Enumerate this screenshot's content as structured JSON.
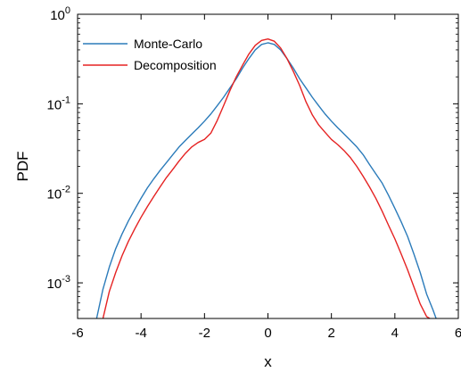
{
  "chart_data": {
    "type": "line",
    "title": "",
    "xlabel": "x",
    "ylabel": "PDF",
    "xlim": [
      -6,
      6
    ],
    "ylim": [
      0.0004,
      1
    ],
    "yscale": "log",
    "grid": false,
    "legend_position": "top-left",
    "x_ticks": [
      {
        "value": -6,
        "label": "-6"
      },
      {
        "value": -4,
        "label": "-4"
      },
      {
        "value": -2,
        "label": "-2"
      },
      {
        "value": 0,
        "label": "0"
      },
      {
        "value": 2,
        "label": "2"
      },
      {
        "value": 4,
        "label": "4"
      },
      {
        "value": 6,
        "label": "6"
      }
    ],
    "y_ticks": [
      {
        "value": 0.001,
        "base": "10",
        "exp": "-3"
      },
      {
        "value": 0.01,
        "base": "10",
        "exp": "-2"
      },
      {
        "value": 0.1,
        "base": "10",
        "exp": "-1"
      },
      {
        "value": 1,
        "base": "10",
        "exp": "0"
      }
    ],
    "series": [
      {
        "name": "Monte-Carlo",
        "color": "#2b7bba",
        "x": [
          -5.4,
          -5.2,
          -5.0,
          -4.8,
          -4.6,
          -4.4,
          -4.2,
          -4.0,
          -3.8,
          -3.6,
          -3.4,
          -3.2,
          -3.0,
          -2.8,
          -2.6,
          -2.4,
          -2.2,
          -2.0,
          -1.8,
          -1.6,
          -1.4,
          -1.2,
          -1.0,
          -0.8,
          -0.6,
          -0.4,
          -0.2,
          0.0,
          0.2,
          0.4,
          0.6,
          0.8,
          1.0,
          1.2,
          1.4,
          1.6,
          1.8,
          2.0,
          2.2,
          2.4,
          2.6,
          2.8,
          3.0,
          3.2,
          3.4,
          3.6,
          3.8,
          4.0,
          4.2,
          4.4,
          4.6,
          4.8,
          5.0,
          5.2,
          5.3
        ],
        "y": [
          0.0004,
          0.00085,
          0.0015,
          0.0024,
          0.0035,
          0.0049,
          0.0066,
          0.0088,
          0.0115,
          0.0145,
          0.018,
          0.022,
          0.027,
          0.033,
          0.039,
          0.046,
          0.054,
          0.064,
          0.077,
          0.095,
          0.118,
          0.15,
          0.19,
          0.25,
          0.32,
          0.4,
          0.46,
          0.48,
          0.46,
          0.4,
          0.32,
          0.25,
          0.19,
          0.15,
          0.118,
          0.095,
          0.077,
          0.064,
          0.054,
          0.046,
          0.039,
          0.033,
          0.027,
          0.021,
          0.0165,
          0.013,
          0.0095,
          0.0068,
          0.0048,
          0.0033,
          0.0021,
          0.0013,
          0.00075,
          0.0005,
          0.0004
        ]
      },
      {
        "name": "Decomposition",
        "color": "#e52222",
        "x": [
          -5.2,
          -5.0,
          -4.8,
          -4.6,
          -4.4,
          -4.2,
          -4.0,
          -3.8,
          -3.6,
          -3.4,
          -3.2,
          -3.0,
          -2.8,
          -2.6,
          -2.4,
          -2.2,
          -2.0,
          -1.8,
          -1.6,
          -1.4,
          -1.2,
          -1.0,
          -0.8,
          -0.6,
          -0.4,
          -0.2,
          0.0,
          0.2,
          0.4,
          0.6,
          0.8,
          1.0,
          1.2,
          1.4,
          1.6,
          1.8,
          2.0,
          2.2,
          2.4,
          2.6,
          2.8,
          3.0,
          3.2,
          3.4,
          3.6,
          3.8,
          4.0,
          4.2,
          4.4,
          4.6,
          4.8,
          5.0,
          5.1
        ],
        "y": [
          0.0004,
          0.0008,
          0.0013,
          0.002,
          0.0029,
          0.004,
          0.0054,
          0.0071,
          0.0092,
          0.0118,
          0.015,
          0.0185,
          0.023,
          0.028,
          0.033,
          0.037,
          0.04,
          0.047,
          0.065,
          0.095,
          0.14,
          0.2,
          0.27,
          0.36,
          0.45,
          0.51,
          0.53,
          0.5,
          0.42,
          0.32,
          0.23,
          0.16,
          0.105,
          0.075,
          0.058,
          0.048,
          0.04,
          0.035,
          0.03,
          0.025,
          0.02,
          0.0155,
          0.0118,
          0.0088,
          0.0063,
          0.0044,
          0.0031,
          0.0021,
          0.0014,
          0.0009,
          0.00058,
          0.00042,
          0.0004
        ]
      }
    ]
  }
}
